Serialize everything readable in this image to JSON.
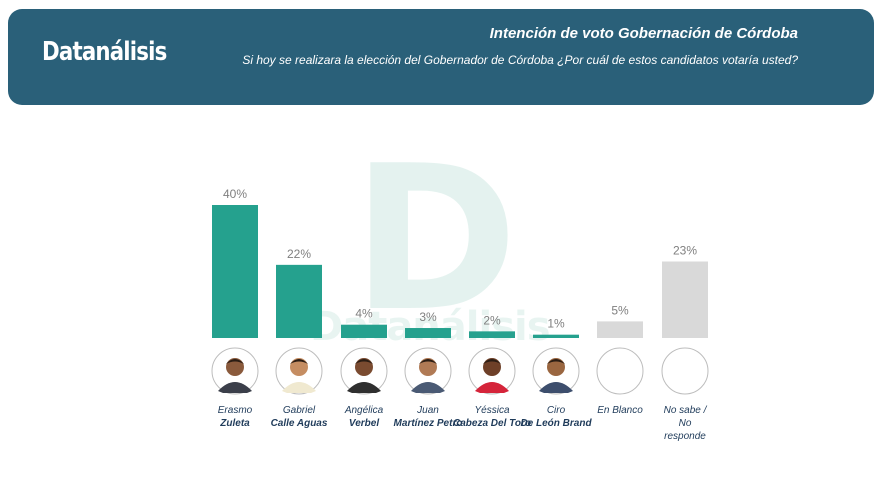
{
  "header": {
    "logo": "Datanálisis",
    "title": "Intención de voto Gobernación de Córdoba",
    "subtitle": "Si hoy se realizara la elección del Gobernador de Córdoba ¿Por cuál de estos candidatos votaría usted?"
  },
  "watermark": {
    "letter": "D",
    "word": "Datanálisis"
  },
  "colors": {
    "header_bg": "#2a6079",
    "candidate_bar": "#25a18e",
    "other_bar": "#d9d9d9",
    "value_label": "#7f7f7f"
  },
  "chart_data": {
    "type": "bar",
    "categories": [
      "Erasmo Zuleta",
      "Gabriel Calle Aguas",
      "Angélica Verbel",
      "Juan Martínez Petro",
      "Yéssica Cabeza Del Toro",
      "Ciro De León Brand",
      "En Blanco",
      "No sabe / No responde"
    ],
    "values": [
      40,
      22,
      4,
      3,
      2,
      1,
      5,
      23
    ],
    "data_labels": [
      "40%",
      "22%",
      "4%",
      "3%",
      "2%",
      "1%",
      "5%",
      "23%"
    ],
    "unit": "%",
    "ylim": [
      0,
      40
    ],
    "title": "Intención de voto Gobernación de Córdoba",
    "xlabel": "",
    "ylabel": "",
    "grid": false,
    "legend": "none"
  },
  "candidates": [
    {
      "first": "Erasmo",
      "last": "Zuleta",
      "photo": true,
      "bar_color": "candidate_bar"
    },
    {
      "first": "Gabriel",
      "last": "Calle Aguas",
      "photo": true,
      "bar_color": "candidate_bar"
    },
    {
      "first": "Angélica",
      "last": "Verbel",
      "photo": true,
      "bar_color": "candidate_bar"
    },
    {
      "first": "Juan",
      "last": "Martínez Petro",
      "photo": true,
      "bar_color": "candidate_bar"
    },
    {
      "first": "Yéssica",
      "last": "Cabeza Del Toro",
      "photo": true,
      "bar_color": "candidate_bar"
    },
    {
      "first": "Ciro",
      "last": "De León Brand",
      "photo": true,
      "bar_color": "candidate_bar"
    },
    {
      "first": "En Blanco",
      "last": "",
      "photo": false,
      "bar_color": "other_bar"
    },
    {
      "first": "No sabe / No responde",
      "last": "",
      "photo": false,
      "bar_color": "other_bar"
    }
  ]
}
